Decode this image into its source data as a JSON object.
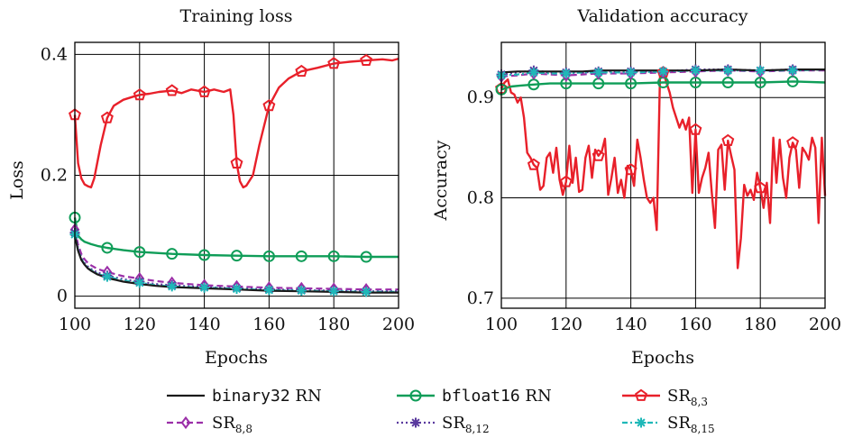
{
  "colors": {
    "binary32": "#1a1a1a",
    "bfloat16": "#0f9d58",
    "sr83": "#e8202a",
    "sr88": "#9b2fa8",
    "sr812": "#5a3a9e",
    "sr815": "#1fb8b8"
  },
  "legend": {
    "binary32": {
      "mono": "binary32",
      "rest": " RN"
    },
    "bfloat16": {
      "mono": "bfloat16",
      "rest": " RN"
    },
    "sr83": {
      "base": "SR",
      "sub": "8,3"
    },
    "sr88": {
      "base": "SR",
      "sub": "8,8"
    },
    "sr812": {
      "base": "SR",
      "sub": "8,12"
    },
    "sr815": {
      "base": "SR",
      "sub": "8,15"
    }
  },
  "chart_data": [
    {
      "type": "line",
      "title": "Training loss",
      "xlabel": "Epochs",
      "ylabel": "Loss",
      "xlim": [
        100,
        200
      ],
      "ylim": [
        -0.02,
        0.42
      ],
      "xticks": [
        100,
        120,
        140,
        160,
        180,
        200
      ],
      "yticks": [
        0,
        0.2,
        0.4
      ],
      "ytick_labels": [
        "0",
        "0.2",
        "0.4"
      ],
      "grid": true,
      "series": [
        {
          "name": "binary32 RN",
          "key": "binary32",
          "x": [
            100,
            101,
            102,
            103,
            104,
            105,
            107,
            110,
            115,
            120,
            125,
            130,
            140,
            150,
            160,
            170,
            180,
            190,
            200
          ],
          "y": [
            0.1,
            0.075,
            0.06,
            0.052,
            0.046,
            0.042,
            0.036,
            0.03,
            0.024,
            0.02,
            0.017,
            0.015,
            0.013,
            0.011,
            0.009,
            0.008,
            0.007,
            0.006,
            0.006
          ]
        },
        {
          "name": "bfloat16 RN",
          "key": "bfloat16",
          "x": [
            100,
            101,
            102,
            103,
            105,
            107,
            110,
            115,
            120,
            130,
            140,
            150,
            160,
            170,
            180,
            190,
            200
          ],
          "y": [
            0.13,
            0.1,
            0.094,
            0.09,
            0.086,
            0.083,
            0.08,
            0.076,
            0.073,
            0.07,
            0.068,
            0.067,
            0.066,
            0.066,
            0.066,
            0.065,
            0.065
          ]
        },
        {
          "name": "SR8,3",
          "key": "sr83",
          "x": [
            100,
            101,
            102,
            103,
            104,
            105,
            106,
            108,
            110,
            112,
            115,
            118,
            120,
            123,
            126,
            130,
            133,
            136,
            140,
            143,
            146,
            148,
            149,
            150,
            151,
            152,
            153,
            155,
            157,
            160,
            163,
            166,
            170,
            175,
            180,
            185,
            190,
            195,
            198,
            200
          ],
          "y": [
            0.3,
            0.22,
            0.195,
            0.185,
            0.182,
            0.18,
            0.195,
            0.25,
            0.295,
            0.315,
            0.325,
            0.33,
            0.333,
            0.335,
            0.338,
            0.34,
            0.336,
            0.342,
            0.338,
            0.342,
            0.338,
            0.342,
            0.3,
            0.22,
            0.19,
            0.18,
            0.183,
            0.2,
            0.25,
            0.315,
            0.345,
            0.36,
            0.372,
            0.378,
            0.385,
            0.388,
            0.39,
            0.392,
            0.39,
            0.393
          ]
        },
        {
          "name": "SR8,8",
          "key": "sr88",
          "x": [
            100,
            101,
            102,
            103,
            104,
            105,
            107,
            110,
            115,
            120,
            125,
            130,
            140,
            150,
            160,
            170,
            180,
            190,
            200
          ],
          "y": [
            0.11,
            0.085,
            0.07,
            0.061,
            0.055,
            0.051,
            0.045,
            0.04,
            0.033,
            0.029,
            0.025,
            0.022,
            0.018,
            0.016,
            0.014,
            0.013,
            0.012,
            0.011,
            0.011
          ]
        },
        {
          "name": "SR8,12",
          "key": "sr812",
          "x": [
            100,
            101,
            102,
            103,
            104,
            105,
            107,
            110,
            115,
            120,
            125,
            130,
            140,
            150,
            160,
            170,
            180,
            190,
            200
          ],
          "y": [
            0.105,
            0.079,
            0.064,
            0.055,
            0.049,
            0.045,
            0.039,
            0.034,
            0.028,
            0.024,
            0.02,
            0.018,
            0.015,
            0.013,
            0.011,
            0.01,
            0.009,
            0.008,
            0.008
          ]
        },
        {
          "name": "SR8,15",
          "key": "sr815",
          "x": [
            100,
            101,
            102,
            103,
            104,
            105,
            107,
            110,
            115,
            120,
            125,
            130,
            140,
            150,
            160,
            170,
            180,
            190,
            200
          ],
          "y": [
            0.102,
            0.076,
            0.061,
            0.053,
            0.047,
            0.043,
            0.037,
            0.032,
            0.026,
            0.022,
            0.018,
            0.016,
            0.014,
            0.012,
            0.01,
            0.009,
            0.008,
            0.007,
            0.007
          ]
        }
      ]
    },
    {
      "type": "line",
      "title": "Validation accuracy",
      "xlabel": "Epochs",
      "ylabel": "Accuracy",
      "xlim": [
        100,
        200
      ],
      "ylim": [
        0.69,
        0.955
      ],
      "xticks": [
        100,
        120,
        140,
        160,
        180,
        200
      ],
      "yticks": [
        0.7,
        0.8,
        0.9
      ],
      "ytick_labels": [
        "0.7",
        "0.8",
        "0.9"
      ],
      "grid": true,
      "series": [
        {
          "name": "binary32 RN",
          "key": "binary32",
          "x": [
            100,
            105,
            110,
            115,
            120,
            125,
            130,
            140,
            150,
            160,
            170,
            180,
            190,
            200
          ],
          "y": [
            0.925,
            0.926,
            0.926,
            0.926,
            0.926,
            0.926,
            0.927,
            0.927,
            0.927,
            0.927,
            0.928,
            0.927,
            0.928,
            0.928
          ]
        },
        {
          "name": "bfloat16 RN",
          "key": "bfloat16",
          "x": [
            100,
            103,
            106,
            110,
            115,
            120,
            125,
            130,
            140,
            150,
            160,
            170,
            180,
            190,
            200
          ],
          "y": [
            0.908,
            0.911,
            0.912,
            0.913,
            0.914,
            0.914,
            0.914,
            0.914,
            0.914,
            0.915,
            0.915,
            0.915,
            0.915,
            0.916,
            0.915
          ]
        },
        {
          "name": "SR8,3",
          "key": "sr83",
          "x": [
            100,
            101,
            102,
            103,
            104,
            105,
            106,
            107,
            108,
            109,
            110,
            111,
            112,
            113,
            114,
            115,
            116,
            117,
            118,
            119,
            120,
            121,
            122,
            123,
            124,
            125,
            126,
            127,
            128,
            129,
            130,
            131,
            132,
            133,
            134,
            135,
            136,
            137,
            138,
            139,
            140,
            141,
            142,
            143,
            144,
            145,
            146,
            147,
            148,
            149,
            150,
            151,
            152,
            153,
            154,
            155,
            156,
            157,
            158,
            159,
            160,
            161,
            162,
            163,
            164,
            165,
            166,
            167,
            168,
            169,
            170,
            171,
            172,
            173,
            174,
            175,
            176,
            177,
            178,
            179,
            180,
            181,
            182,
            183,
            184,
            185,
            186,
            187,
            188,
            189,
            190,
            191,
            192,
            193,
            194,
            195,
            196,
            197,
            198,
            199,
            200
          ],
          "y": [
            0.909,
            0.915,
            0.918,
            0.905,
            0.903,
            0.895,
            0.9,
            0.88,
            0.845,
            0.84,
            0.833,
            0.83,
            0.808,
            0.812,
            0.84,
            0.845,
            0.825,
            0.85,
            0.818,
            0.803,
            0.816,
            0.852,
            0.815,
            0.84,
            0.806,
            0.808,
            0.84,
            0.852,
            0.82,
            0.848,
            0.842,
            0.846,
            0.859,
            0.803,
            0.82,
            0.84,
            0.805,
            0.818,
            0.8,
            0.832,
            0.828,
            0.812,
            0.858,
            0.84,
            0.818,
            0.8,
            0.795,
            0.8,
            0.768,
            0.92,
            0.925,
            0.915,
            0.905,
            0.89,
            0.88,
            0.87,
            0.878,
            0.868,
            0.88,
            0.805,
            0.868,
            0.805,
            0.82,
            0.83,
            0.845,
            0.805,
            0.77,
            0.848,
            0.853,
            0.808,
            0.857,
            0.842,
            0.828,
            0.73,
            0.76,
            0.813,
            0.802,
            0.808,
            0.798,
            0.825,
            0.81,
            0.79,
            0.815,
            0.775,
            0.86,
            0.815,
            0.858,
            0.82,
            0.8,
            0.84,
            0.855,
            0.848,
            0.81,
            0.85,
            0.845,
            0.838,
            0.86,
            0.85,
            0.775,
            0.86,
            0.802
          ]
        },
        {
          "name": "SR8,8",
          "key": "sr88",
          "x": [
            100,
            105,
            110,
            115,
            120,
            125,
            130,
            140,
            150,
            160,
            170,
            180,
            190,
            200
          ],
          "y": [
            0.921,
            0.922,
            0.924,
            0.923,
            0.922,
            0.923,
            0.924,
            0.924,
            0.925,
            0.926,
            0.927,
            0.926,
            0.927,
            0.927
          ]
        },
        {
          "name": "SR8,12",
          "key": "sr812",
          "x": [
            100,
            105,
            110,
            115,
            120,
            125,
            130,
            140,
            150,
            160,
            170,
            180,
            190,
            200
          ],
          "y": [
            0.923,
            0.925,
            0.927,
            0.925,
            0.925,
            0.925,
            0.926,
            0.926,
            0.926,
            0.928,
            0.928,
            0.927,
            0.928,
            0.928
          ]
        },
        {
          "name": "SR8,15",
          "key": "sr815",
          "x": [
            100,
            105,
            110,
            115,
            120,
            125,
            130,
            140,
            150,
            160,
            170,
            180,
            190,
            200
          ],
          "y": [
            0.922,
            0.923,
            0.925,
            0.924,
            0.924,
            0.925,
            0.925,
            0.925,
            0.926,
            0.927,
            0.927,
            0.927,
            0.927,
            0.928
          ]
        }
      ]
    }
  ]
}
